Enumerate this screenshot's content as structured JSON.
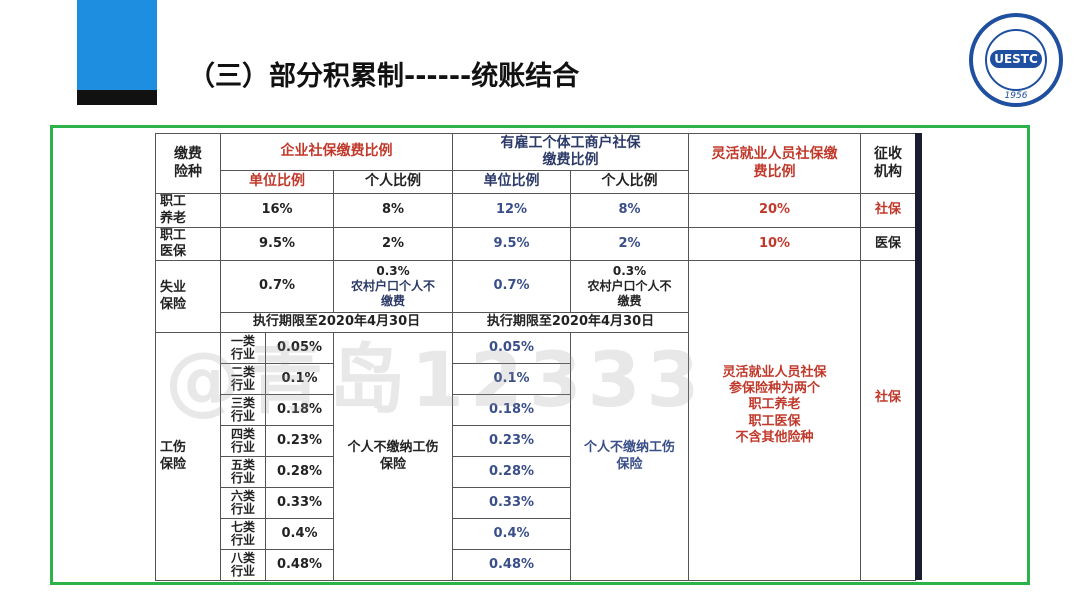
{
  "header": {
    "title": "（三）部分积累制------统账结合"
  },
  "logo": {
    "text": "UESTC",
    "year": "1956"
  },
  "watermark": "@青岛12333",
  "table": {
    "headers": {
      "insurance": "缴费险种",
      "enterprise": "企业社保缴费比例",
      "self_employed": "有雇工个体工商户社保缴费比例",
      "flexible": "灵活就业人员社保缴费比例",
      "collector": "征收机构",
      "enterprise_unit": "单位比例",
      "enterprise_personal": "个人比例",
      "self_unit": "单位比例",
      "self_personal": "个人比例"
    },
    "pension": {
      "label": "职工养老",
      "enterprise_unit": "16%",
      "enterprise_personal": "8%",
      "self_unit": "12%",
      "self_personal": "8%",
      "flexible": "20%",
      "collector": "社保"
    },
    "medical": {
      "label": "职工医保",
      "enterprise_unit": "9.5%",
      "enterprise_personal": "2%",
      "self_unit": "9.5%",
      "self_personal": "2%",
      "flexible": "10%",
      "collector": "医保"
    },
    "unemployment": {
      "label": "失业保险",
      "enterprise_unit": "0.7%",
      "enterprise_personal": "0.3%",
      "enterprise_personal_note": "农村户口个人不缴费",
      "self_unit": "0.7%",
      "self_personal": "0.3%",
      "self_personal_note": "农村户口个人不缴费",
      "enterprise_period": "执行期限至2020年4月30日",
      "self_period": "执行期限至2020年4月30日"
    },
    "injury": {
      "label": "工伤保险",
      "enterprise_personal": "个人不缴纳工伤保险",
      "self_personal": "个人不缴纳工伤保险",
      "rows": [
        {
          "class": "一类行业",
          "enterprise": "0.05%",
          "self_employed": "0.05%"
        },
        {
          "class": "二类行业",
          "enterprise": "0.1%",
          "self_employed": "0.1%"
        },
        {
          "class": "三类行业",
          "enterprise": "0.18%",
          "self_employed": "0.18%"
        },
        {
          "class": "四类行业",
          "enterprise": "0.23%",
          "self_employed": "0.23%"
        },
        {
          "class": "五类行业",
          "enterprise": "0.28%",
          "self_employed": "0.28%"
        },
        {
          "class": "六类行业",
          "enterprise": "0.33%",
          "self_employed": "0.33%"
        },
        {
          "class": "七类行业",
          "enterprise": "0.4%",
          "self_employed": "0.4%"
        },
        {
          "class": "八类行业",
          "enterprise": "0.48%",
          "self_employed": "0.48%"
        }
      ]
    },
    "flexible_note": [
      "灵活就业人员社保",
      "参保险种为两个",
      "职工养老",
      "职工医保",
      "不含其他险种"
    ],
    "lower_collector": "社保"
  }
}
